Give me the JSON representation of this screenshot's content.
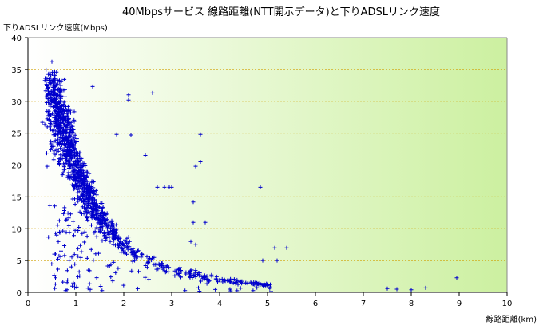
{
  "chart_data": {
    "type": "scatter",
    "title": "40Mbpsサービス 線路距離(NTT開示データ)と下りADSLリンク速度",
    "xlabel": "線路距離(km)",
    "ylabel": "下りADSLリンク速度(Mbps)",
    "xlim": [
      0,
      10
    ],
    "ylim": [
      0,
      40
    ],
    "x_ticks": [
      "0",
      "1",
      "2",
      "3",
      "4",
      "5",
      "6",
      "7",
      "8",
      "9",
      "10"
    ],
    "y_ticks": [
      "0",
      "5",
      "10",
      "15",
      "20",
      "25",
      "30",
      "35",
      "40"
    ],
    "grid": true,
    "marker": "plus",
    "series_color": "#0000cc",
    "background": {
      "from": "#ffffff",
      "to": "#ccf0a0"
    },
    "trend_anchors": [
      {
        "x": 0.4,
        "y": 30.5
      },
      {
        "x": 0.6,
        "y": 28.5
      },
      {
        "x": 0.8,
        "y": 25
      },
      {
        "x": 1.0,
        "y": 20
      },
      {
        "x": 1.2,
        "y": 16
      },
      {
        "x": 1.5,
        "y": 12
      },
      {
        "x": 2.0,
        "y": 7.5
      },
      {
        "x": 2.5,
        "y": 5
      },
      {
        "x": 3.0,
        "y": 3.5
      },
      {
        "x": 4.0,
        "y": 2
      },
      {
        "x": 5.0,
        "y": 1.2
      },
      {
        "x": 6.0,
        "y": 0.8
      },
      {
        "x": 7.0,
        "y": 0.6
      }
    ],
    "outliers": [
      {
        "x": 0.5,
        "y": 36.2
      },
      {
        "x": 1.35,
        "y": 32.3
      },
      {
        "x": 2.1,
        "y": 31.0
      },
      {
        "x": 2.1,
        "y": 30.2
      },
      {
        "x": 2.6,
        "y": 31.3
      },
      {
        "x": 1.85,
        "y": 24.8
      },
      {
        "x": 2.15,
        "y": 24.7
      },
      {
        "x": 3.6,
        "y": 24.8
      },
      {
        "x": 2.45,
        "y": 21.5
      },
      {
        "x": 3.5,
        "y": 19.8
      },
      {
        "x": 3.6,
        "y": 20.5
      },
      {
        "x": 2.7,
        "y": 16.5
      },
      {
        "x": 2.85,
        "y": 16.5
      },
      {
        "x": 2.95,
        "y": 16.5
      },
      {
        "x": 3.0,
        "y": 16.5
      },
      {
        "x": 4.85,
        "y": 16.5
      },
      {
        "x": 3.45,
        "y": 14.2
      },
      {
        "x": 3.45,
        "y": 11.0
      },
      {
        "x": 3.7,
        "y": 11.0
      },
      {
        "x": 3.4,
        "y": 8.0
      },
      {
        "x": 3.5,
        "y": 7.5
      },
      {
        "x": 5.15,
        "y": 7.0
      },
      {
        "x": 5.4,
        "y": 7.0
      },
      {
        "x": 4.9,
        "y": 5.0
      },
      {
        "x": 5.2,
        "y": 5.0
      },
      {
        "x": 0.3,
        "y": 26.7
      },
      {
        "x": 0.4,
        "y": 19.8
      },
      {
        "x": 0.6,
        "y": 9.0
      },
      {
        "x": 0.55,
        "y": 6.0
      },
      {
        "x": 8.3,
        "y": 0.7
      },
      {
        "x": 8.95,
        "y": 2.3
      },
      {
        "x": 7.5,
        "y": 0.6
      },
      {
        "x": 7.7,
        "y": 0.5
      },
      {
        "x": 8.0,
        "y": 0.4
      }
    ],
    "sample_count": 5000
  }
}
